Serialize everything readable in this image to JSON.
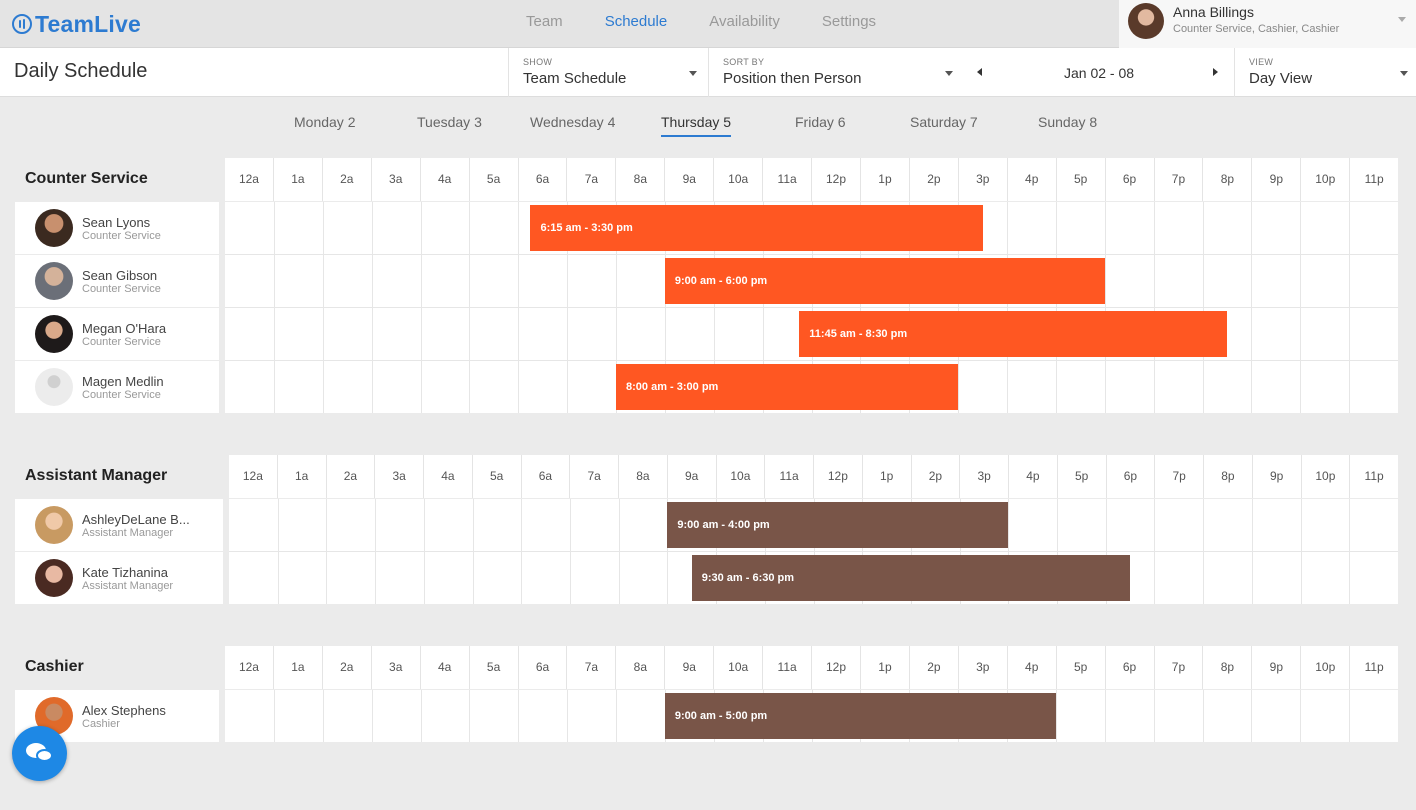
{
  "app": {
    "name": "TeamLive"
  },
  "nav": {
    "tabs": [
      "Team",
      "Schedule",
      "Availability",
      "Settings"
    ],
    "active": "Schedule"
  },
  "user": {
    "name": "Anna Billings",
    "roles": "Counter Service, Cashier, Cashier"
  },
  "header": {
    "title": "Daily Schedule",
    "show": {
      "label": "SHOW",
      "value": "Team Schedule"
    },
    "sort": {
      "label": "SORT BY",
      "value": "Position then Person"
    },
    "date_range": "Jan 02 - 08",
    "view": {
      "label": "VIEW",
      "value": "Day View"
    }
  },
  "days": [
    "Monday 2",
    "Tuesday 3",
    "Wednesday 4",
    "Thursday 5",
    "Friday 6",
    "Saturday 7",
    "Sunday 8"
  ],
  "active_day": "Thursday 5",
  "hours": [
    "12a",
    "1a",
    "2a",
    "3a",
    "4a",
    "5a",
    "6a",
    "7a",
    "8a",
    "9a",
    "10a",
    "11a",
    "12p",
    "1p",
    "2p",
    "3p",
    "4p",
    "5p",
    "6p",
    "7p",
    "8p",
    "9p",
    "10p",
    "11p"
  ],
  "colors": {
    "accent": "#2d7bd1",
    "counter_service": "#ff5722",
    "manager": "#795548",
    "cashier": "#795548"
  },
  "sections": [
    {
      "title": "Counter Service",
      "people": [
        {
          "name": "Sean Lyons",
          "role": "Counter Service",
          "shift": "6:15 am - 3:30 pm",
          "start": 6.25,
          "end": 15.5
        },
        {
          "name": "Sean Gibson",
          "role": "Counter Service",
          "shift": "9:00 am - 6:00 pm",
          "start": 9,
          "end": 18
        },
        {
          "name": "Megan O'Hara",
          "role": "Counter Service",
          "shift": "11:45 am - 8:30 pm",
          "start": 11.75,
          "end": 20.5
        },
        {
          "name": "Magen Medlin",
          "role": "Counter Service",
          "shift": "8:00 am - 3:00 pm",
          "start": 8,
          "end": 15
        }
      ]
    },
    {
      "title": "Assistant Manager",
      "people": [
        {
          "name": "AshleyDeLane B...",
          "role": "Assistant Manager",
          "shift": "9:00 am - 4:00 pm",
          "start": 9,
          "end": 16
        },
        {
          "name": "Kate Tizhanina",
          "role": "Assistant Manager",
          "shift": "9:30 am - 6:30 pm",
          "start": 9.5,
          "end": 18.5
        }
      ]
    },
    {
      "title": "Cashier",
      "people": [
        {
          "name": "Alex Stephens",
          "role": "Cashier",
          "shift": "9:00 am - 5:00 pm",
          "start": 9,
          "end": 17
        }
      ]
    }
  ]
}
